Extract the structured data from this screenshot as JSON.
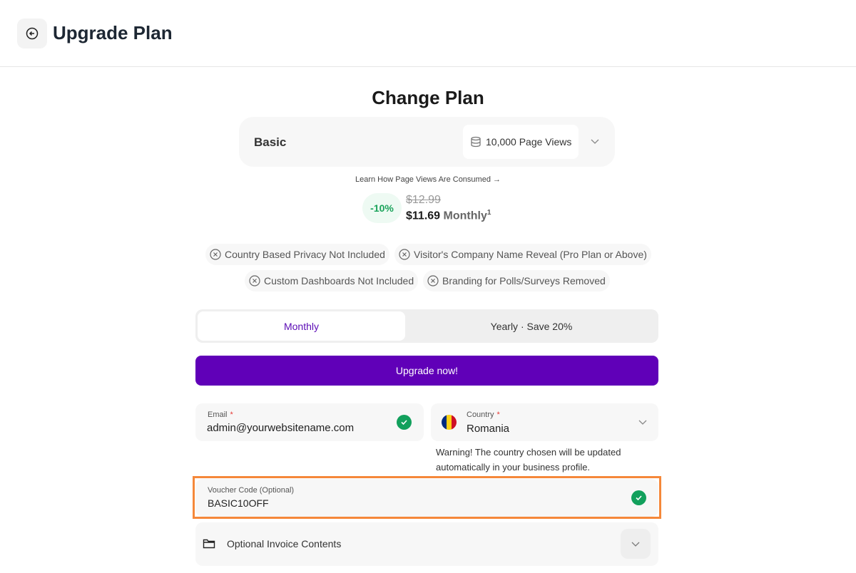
{
  "header": {
    "title": "Upgrade Plan",
    "back_icon": "arrow-left-circle-icon"
  },
  "main": {
    "title": "Change Plan",
    "plan": {
      "name": "Basic",
      "page_views": "10,000 Page Views"
    },
    "learn_link": "Learn How Page Views Are Consumed →",
    "price": {
      "discount": "-10%",
      "old": "$12.99",
      "new": "$11.69",
      "period": "Monthly",
      "footnote": "1"
    },
    "features": [
      "Country Based Privacy Not Included",
      "Visitor's Company Name Reveal (Pro Plan or Above)",
      "Custom Dashboards Not Included",
      "Branding for Polls/Surveys Removed"
    ],
    "billing": {
      "monthly": "Monthly",
      "yearly": "Yearly · Save 20%",
      "selected": "Monthly"
    },
    "upgrade_button": "Upgrade now!",
    "email": {
      "label": "Email",
      "required": "*",
      "value": "admin@yourwebsitename.com"
    },
    "country": {
      "label": "Country",
      "required": "*",
      "value": "Romania"
    },
    "warning": "Warning! The country chosen will be updated automatically in your business profile.",
    "voucher": {
      "label": "Voucher Code (Optional)",
      "value": "BASIC10OFF"
    },
    "invoice": {
      "label": "Optional Invoice Contents"
    }
  },
  "colors": {
    "accent": "#6000b8",
    "success": "#12a05c",
    "highlight": "#f5883a"
  }
}
